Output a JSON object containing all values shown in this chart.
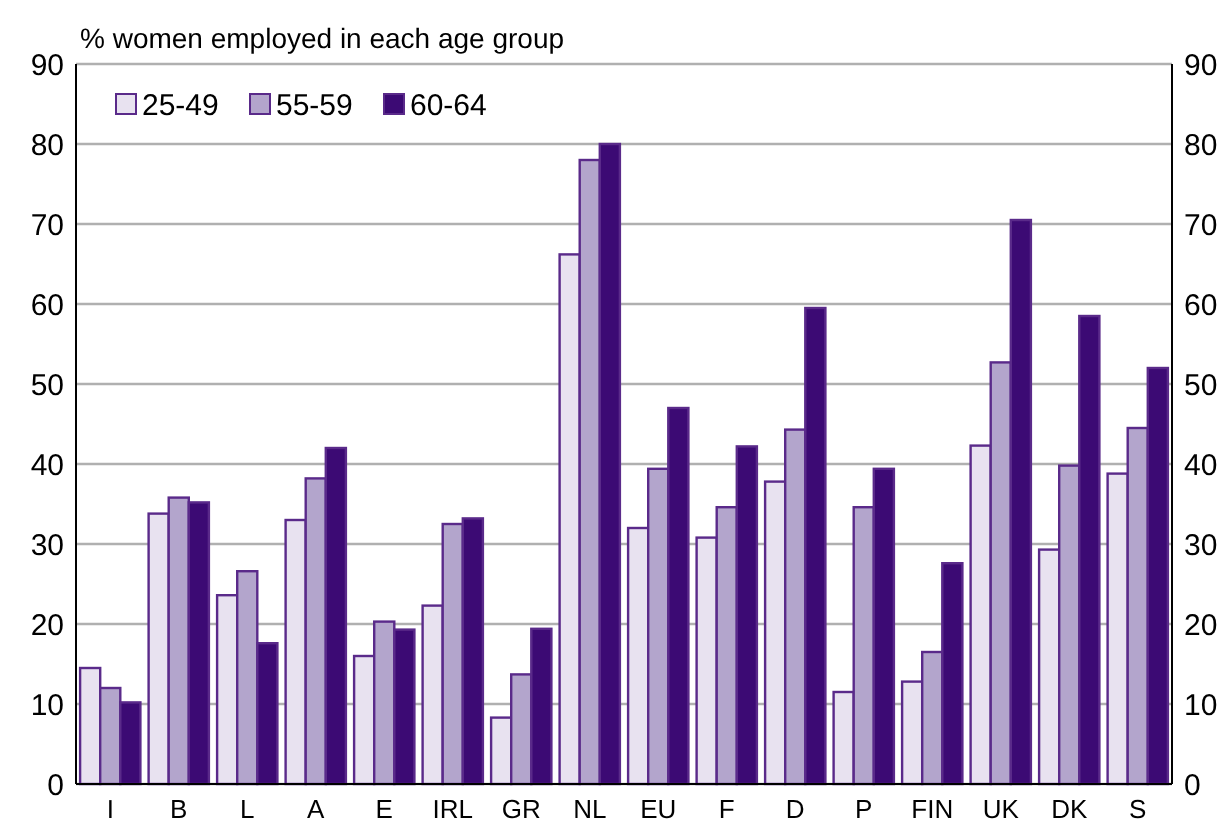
{
  "chart_data": {
    "type": "bar",
    "title": "% women employed in each age group",
    "categories": [
      "I",
      "B",
      "L",
      "A",
      "E",
      "IRL",
      "GR",
      "NL",
      "EU",
      "F",
      "D",
      "P",
      "FIN",
      "UK",
      "DK",
      "S"
    ],
    "series": [
      {
        "name": "25-49",
        "color": "#e8e2f0",
        "values": [
          14.5,
          33.8,
          23.6,
          33,
          16,
          22.3,
          8.3,
          66.2,
          32,
          30.8,
          37.8,
          11.5,
          12.8,
          42.3,
          29.3,
          38.8
        ]
      },
      {
        "name": "55-59",
        "color": "#b3a5cc",
        "values": [
          12,
          35.8,
          26.6,
          38.2,
          20.3,
          32.5,
          13.7,
          78,
          39.4,
          34.6,
          44.3,
          34.6,
          16.5,
          52.7,
          39.8,
          44.5
        ]
      },
      {
        "name": "60-64",
        "color": "#3c0a74",
        "values": [
          10.2,
          35.2,
          17.6,
          42,
          19.3,
          33.2,
          19.4,
          80,
          47,
          42.2,
          59.5,
          39.4,
          27.6,
          70.5,
          58.5,
          52
        ]
      }
    ],
    "ylim": [
      0,
      90
    ],
    "yticks": [
      0,
      10,
      20,
      30,
      40,
      50,
      60,
      70,
      80,
      90
    ],
    "y2lim": [
      0,
      90
    ],
    "y2ticks": [
      0,
      10,
      20,
      30,
      40,
      50,
      60,
      70,
      80,
      90
    ],
    "grid": "y",
    "legend": "top left"
  }
}
